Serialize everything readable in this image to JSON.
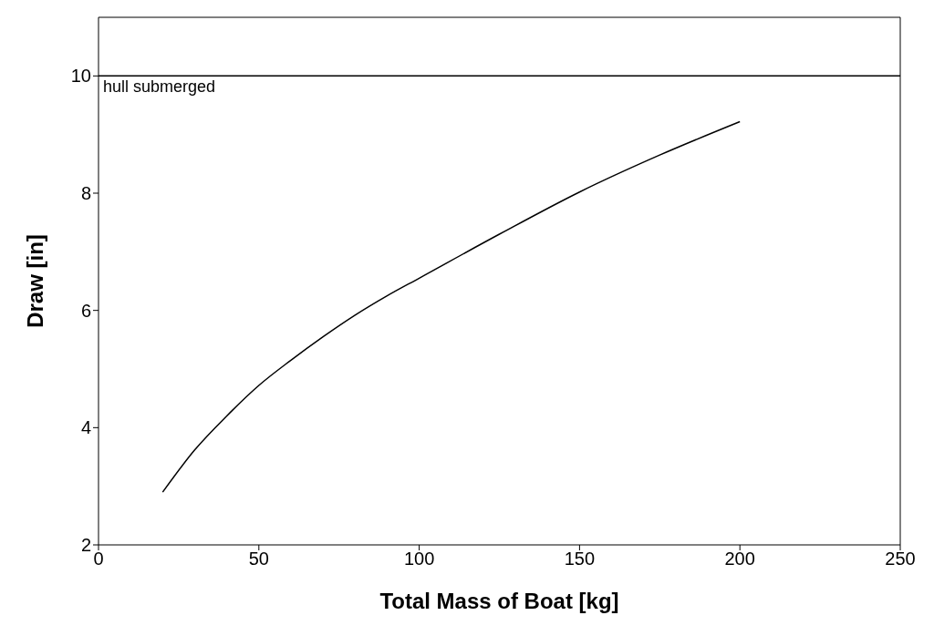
{
  "chart_data": {
    "type": "line",
    "xlabel": "Total Mass of Boat  [kg]",
    "ylabel": "Draw  [in]",
    "x": [
      20,
      30,
      40,
      50,
      60,
      70,
      80,
      90,
      100,
      125,
      150,
      175,
      200
    ],
    "series": [
      {
        "color": "#000000",
        "values": [
          2.9,
          3.62,
          4.2,
          4.72,
          5.15,
          5.55,
          5.92,
          6.25,
          6.55,
          7.3,
          8.02,
          8.65,
          9.22
        ]
      }
    ],
    "xlim": [
      0,
      250
    ],
    "xticks": [
      0,
      50,
      100,
      150,
      200,
      250
    ],
    "ylim": [
      2,
      11
    ],
    "yticks": [
      2,
      4,
      6,
      8,
      10
    ],
    "ref_lines": [
      {
        "axis": "y",
        "value": 10,
        "label": "hull submerged",
        "color": "#000000"
      }
    ],
    "grid": false,
    "legend": false,
    "marker": "none",
    "line_style": "solid"
  }
}
